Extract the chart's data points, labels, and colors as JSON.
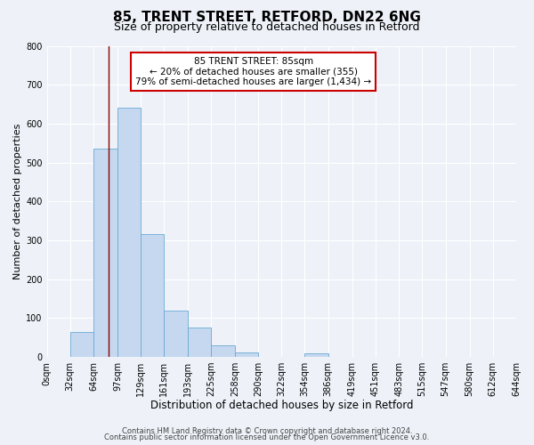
{
  "title1": "85, TRENT STREET, RETFORD, DN22 6NG",
  "title2": "Size of property relative to detached houses in Retford",
  "xlabel": "Distribution of detached houses by size in Retford",
  "ylabel": "Number of detached properties",
  "bin_edges": [
    0,
    32,
    64,
    97,
    129,
    161,
    193,
    225,
    258,
    290,
    322,
    354,
    386,
    419,
    451,
    483,
    515,
    547,
    580,
    612,
    644
  ],
  "bin_heights": [
    0,
    65,
    535,
    640,
    315,
    120,
    75,
    30,
    12,
    0,
    0,
    8,
    0,
    0,
    0,
    0,
    0,
    0,
    0,
    0
  ],
  "bar_color": "#c5d8f0",
  "bar_edge_color": "#6aaad4",
  "vline_x": 85,
  "vline_color": "#8b0000",
  "annotation_text": "85 TRENT STREET: 85sqm\n← 20% of detached houses are smaller (355)\n79% of semi-detached houses are larger (1,434) →",
  "annotation_box_color": "#ffffff",
  "annotation_box_edge_color": "#cc0000",
  "ylim": [
    0,
    800
  ],
  "yticks": [
    0,
    100,
    200,
    300,
    400,
    500,
    600,
    700,
    800
  ],
  "tick_labels": [
    "0sqm",
    "32sqm",
    "64sqm",
    "97sqm",
    "129sqm",
    "161sqm",
    "193sqm",
    "225sqm",
    "258sqm",
    "290sqm",
    "322sqm",
    "354sqm",
    "386sqm",
    "419sqm",
    "451sqm",
    "483sqm",
    "515sqm",
    "547sqm",
    "580sqm",
    "612sqm",
    "644sqm"
  ],
  "footer1": "Contains HM Land Registry data © Crown copyright and database right 2024.",
  "footer2": "Contains public sector information licensed under the Open Government Licence v3.0.",
  "background_color": "#eef2f8",
  "grid_color": "#ffffff",
  "title1_fontsize": 11,
  "title2_fontsize": 9,
  "xlabel_fontsize": 8.5,
  "ylabel_fontsize": 8,
  "tick_fontsize": 7,
  "footer_fontsize": 6,
  "annot_fontsize": 7.5
}
